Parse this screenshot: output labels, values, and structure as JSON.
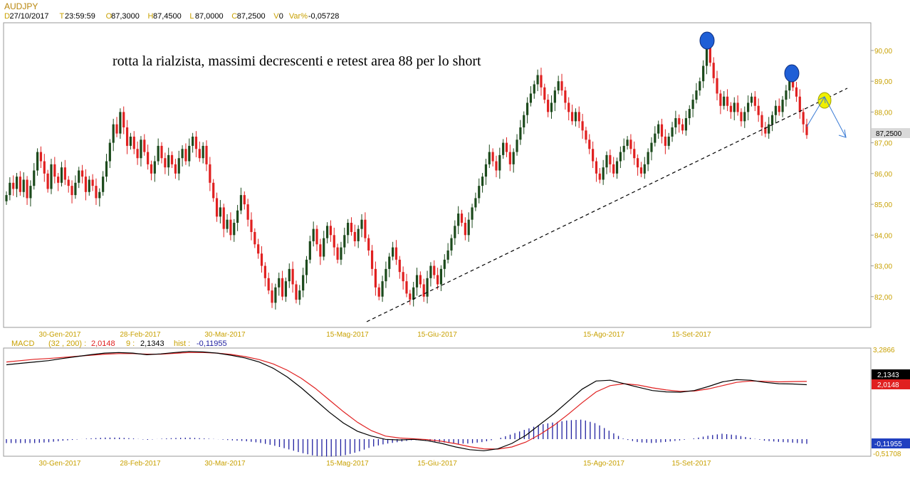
{
  "header": {
    "symbol": "AUDJPY",
    "fields": [
      {
        "key": "D",
        "value": "27/10/2017"
      },
      {
        "key": "T",
        "value": "23:59:59"
      },
      {
        "key": "O",
        "value": "87,3000"
      },
      {
        "key": "H",
        "value": "87,4500"
      },
      {
        "key": "L",
        "value": "87,0000"
      },
      {
        "key": "C",
        "value": "87,2500"
      },
      {
        "key": "V",
        "value": "0"
      },
      {
        "key": "Var%",
        "value": "-0,05728"
      }
    ]
  },
  "annotation": "rotta la rialzista, massimi decrescenti e retest area 88 per lo short",
  "colors": {
    "up": "#1c4a1c",
    "down": "#e02020",
    "grid_text": "#c8a000",
    "macd_line": "#000000",
    "signal_line": "#e02020",
    "hist": "#2020a0",
    "marker_blue": "#1f5fd6",
    "marker_yellow": "#f0f000",
    "arrow": "#3a7bd5"
  },
  "chart_data": [
    {
      "type": "candlestick",
      "title": "AUDJPY",
      "y_ticks": [
        "82,00",
        "83,00",
        "84,00",
        "85,00",
        "86,00",
        "87,00",
        "88,00",
        "89,00",
        "90,00"
      ],
      "x_ticks": [
        "30-Gen-2017",
        "28-Feb-2017",
        "30-Mar-2017",
        "15-Mag-2017",
        "15-Giu-2017",
        "15-Ago-2017",
        "15-Set-2017"
      ],
      "ylim": [
        81.0,
        90.9
      ],
      "last_value_label": "87,2500",
      "closes": [
        85.3,
        85.7,
        85.5,
        85.9,
        85.4,
        85.8,
        85.2,
        85.6,
        86.1,
        86.7,
        86.4,
        86.0,
        85.5,
        86.3,
        85.9,
        85.7,
        86.2,
        85.8,
        85.6,
        85.3,
        85.7,
        86.1,
        85.9,
        85.4,
        85.8,
        85.6,
        85.2,
        85.4,
        85.9,
        86.4,
        87.0,
        87.6,
        87.3,
        88.0,
        87.5,
        86.9,
        87.2,
        86.8,
        86.5,
        87.1,
        86.7,
        86.3,
        86.0,
        86.4,
        86.9,
        86.5,
        86.2,
        86.6,
        86.3,
        86.0,
        86.5,
        86.8,
        86.4,
        86.9,
        87.2,
        86.8,
        86.5,
        86.9,
        86.3,
        85.7,
        85.2,
        84.6,
        84.9,
        84.2,
        84.5,
        84.0,
        84.4,
        84.8,
        85.3,
        85.0,
        84.5,
        84.1,
        83.7,
        83.4,
        83.0,
        82.6,
        82.2,
        81.8,
        82.3,
        82.6,
        82.0,
        82.5,
        82.9,
        82.4,
        81.9,
        82.2,
        82.7,
        83.2,
        83.8,
        84.2,
        83.7,
        83.3,
        83.9,
        84.3,
        84.0,
        83.6,
        83.2,
        83.6,
        84.0,
        84.4,
        84.1,
        83.8,
        84.2,
        84.5,
        83.9,
        83.5,
        82.9,
        82.3,
        82.0,
        82.5,
        82.9,
        83.3,
        83.6,
        83.2,
        82.8,
        82.5,
        82.1,
        81.9,
        82.3,
        82.7,
        82.4,
        82.0,
        82.6,
        83.0,
        82.7,
        82.4,
        82.9,
        83.2,
        83.5,
        83.9,
        84.3,
        84.7,
        84.4,
        84.0,
        84.5,
        84.9,
        85.2,
        85.6,
        85.9,
        86.3,
        86.7,
        86.4,
        86.1,
        86.6,
        87.0,
        86.7,
        86.3,
        86.7,
        87.1,
        87.5,
        87.9,
        88.3,
        88.6,
        88.9,
        89.2,
        88.8,
        88.4,
        88.0,
        88.3,
        88.7,
        89.0,
        88.7,
        88.3,
        88.0,
        87.7,
        88.0,
        87.7,
        87.4,
        87.1,
        86.8,
        86.4,
        86.0,
        85.8,
        86.2,
        86.6,
        86.3,
        86.0,
        86.4,
        86.7,
        86.9,
        87.1,
        86.8,
        86.5,
        86.2,
        86.0,
        86.3,
        86.7,
        87.0,
        87.3,
        87.6,
        87.2,
        86.9,
        87.2,
        87.5,
        87.8,
        87.6,
        87.4,
        87.8,
        88.1,
        88.4,
        88.7,
        89.0,
        89.5,
        90.2,
        89.6,
        89.1,
        88.6,
        88.2,
        88.5,
        88.2,
        88.0,
        88.3,
        88.0,
        87.7,
        88.0,
        88.3,
        88.5,
        88.2,
        87.9,
        87.5,
        87.3,
        87.6,
        87.9,
        88.2,
        88.0,
        88.4,
        88.7,
        89.0,
        88.8,
        88.5,
        88.0,
        87.6,
        87.25
      ],
      "macd_panel": {
        "label": "MACD",
        "params": "(32 , 200)",
        "macd_value": "2,0148",
        "signal_period": "9",
        "signal_value": "2,1343",
        "hist_label": "hist",
        "hist_value": "-0,11955",
        "y_top_label": "3,2866",
        "y_bottom_label": "-0,51708",
        "macd_values": [
          2.75,
          2.8,
          2.85,
          2.9,
          2.98,
          3.05,
          3.12,
          3.18,
          3.2,
          3.18,
          3.12,
          3.15,
          3.2,
          3.24,
          3.22,
          3.18,
          3.1,
          3.0,
          2.85,
          2.62,
          2.3,
          1.9,
          1.45,
          1.0,
          0.6,
          0.3,
          0.12,
          0.0,
          -0.02,
          0.0,
          -0.05,
          -0.15,
          -0.28,
          -0.38,
          -0.42,
          -0.35,
          -0.15,
          0.15,
          0.55,
          0.95,
          1.4,
          1.85,
          2.15,
          2.18,
          2.05,
          1.92,
          1.8,
          1.75,
          1.74,
          1.8,
          1.95,
          2.12,
          2.2,
          2.18,
          2.1,
          2.05,
          2.04,
          2.0148
        ],
        "signal_values": [
          2.85,
          2.9,
          2.95,
          2.98,
          3.02,
          3.06,
          3.1,
          3.14,
          3.16,
          3.16,
          3.14,
          3.14,
          3.17,
          3.2,
          3.2,
          3.18,
          3.13,
          3.05,
          2.94,
          2.78,
          2.55,
          2.25,
          1.88,
          1.45,
          1.02,
          0.63,
          0.32,
          0.12,
          0.05,
          0.02,
          -0.01,
          -0.07,
          -0.16,
          -0.27,
          -0.35,
          -0.36,
          -0.28,
          -0.1,
          0.18,
          0.52,
          0.92,
          1.35,
          1.75,
          1.98,
          2.05,
          2.0,
          1.9,
          1.82,
          1.77,
          1.78,
          1.86,
          1.98,
          2.1,
          2.15,
          2.14,
          2.12,
          2.13,
          2.1343
        ]
      }
    }
  ]
}
